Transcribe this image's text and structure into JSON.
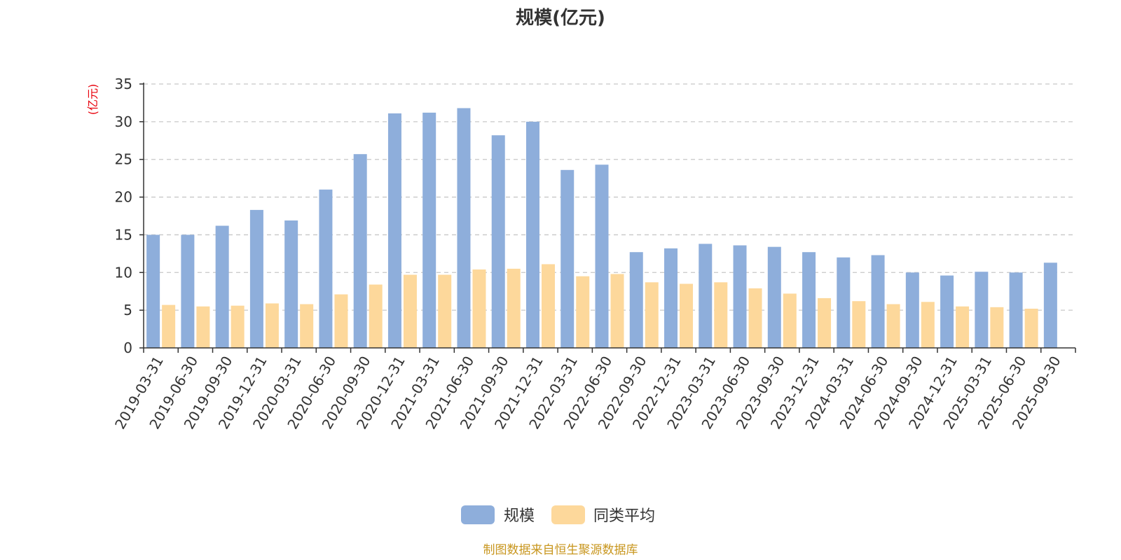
{
  "chart_data": {
    "type": "bar",
    "title": "规模(亿元)",
    "ylabel": "(亿元)",
    "ylim": [
      0,
      35
    ],
    "yticks": [
      0,
      5,
      10,
      15,
      20,
      25,
      30,
      35
    ],
    "grid": true,
    "legend_position": "bottom",
    "categories": [
      "2019-03-31",
      "2019-06-30",
      "2019-09-30",
      "2019-12-31",
      "2020-03-31",
      "2020-06-30",
      "2020-09-30",
      "2020-12-31",
      "2021-03-31",
      "2021-06-30",
      "2021-09-30",
      "2021-12-31",
      "2022-03-31",
      "2022-06-30",
      "2022-09-30",
      "2022-12-31",
      "2023-03-31",
      "2023-06-30",
      "2023-09-30",
      "2023-12-31",
      "2024-03-31",
      "2024-06-30",
      "2024-09-30",
      "2024-12-31",
      "2025-03-31",
      "2025-06-30",
      "2025-09-30"
    ],
    "series": [
      {
        "name": "规模",
        "color": "#8eaedb",
        "values": [
          15.0,
          15.0,
          16.2,
          18.3,
          16.9,
          21.0,
          25.7,
          31.1,
          31.2,
          31.8,
          28.2,
          30.0,
          23.6,
          24.3,
          12.7,
          13.2,
          13.8,
          13.6,
          13.4,
          12.7,
          12.0,
          12.3,
          10.0,
          9.6,
          10.1,
          10.0,
          11.3
        ]
      },
      {
        "name": "同类平均",
        "color": "#fdd89b",
        "values": [
          5.7,
          5.5,
          5.6,
          5.9,
          5.8,
          7.1,
          8.4,
          9.7,
          9.7,
          10.4,
          10.5,
          11.1,
          9.5,
          9.8,
          8.7,
          8.5,
          8.7,
          7.9,
          7.2,
          6.6,
          6.2,
          5.8,
          6.1,
          5.5,
          5.4,
          5.2,
          null
        ]
      }
    ]
  },
  "footer": {
    "source_text": "制图数据来自恒生聚源数据库"
  }
}
